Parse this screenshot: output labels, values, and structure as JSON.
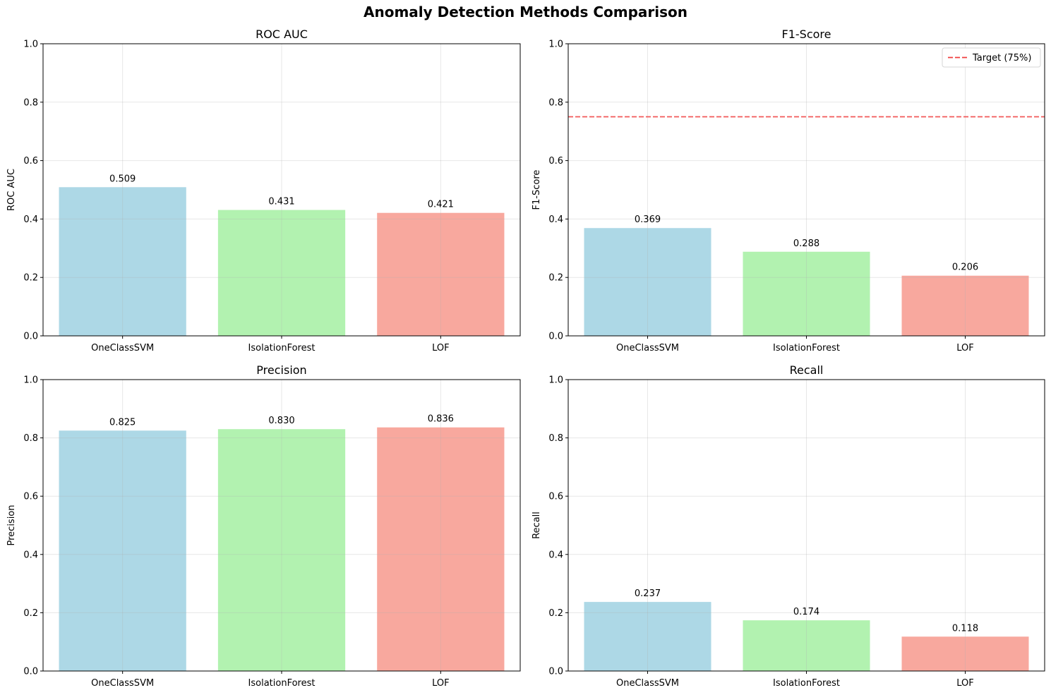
{
  "suptitle": "Anomaly Detection Methods Comparison",
  "chart_data": [
    {
      "type": "bar",
      "title": "ROC AUC",
      "ylabel": "ROC AUC",
      "xlabel": "",
      "categories": [
        "OneClassSVM",
        "IsolationForest",
        "LOF"
      ],
      "values": [
        0.509,
        0.431,
        0.421
      ],
      "value_labels": [
        "0.509",
        "0.431",
        "0.421"
      ],
      "colors": [
        "#add8e6",
        "#b2f2b0",
        "#f8a89e"
      ],
      "ylim": [
        0,
        1.0
      ],
      "yticks": [
        "0.0",
        "0.2",
        "0.4",
        "0.6",
        "0.8",
        "1.0"
      ],
      "grid": true
    },
    {
      "type": "bar",
      "title": "F1-Score",
      "ylabel": "F1-Score",
      "xlabel": "",
      "categories": [
        "OneClassSVM",
        "IsolationForest",
        "LOF"
      ],
      "values": [
        0.369,
        0.288,
        0.206
      ],
      "value_labels": [
        "0.369",
        "0.288",
        "0.206"
      ],
      "colors": [
        "#add8e6",
        "#b2f2b0",
        "#f8a89e"
      ],
      "ylim": [
        0,
        1.0
      ],
      "yticks": [
        "0.0",
        "0.2",
        "0.4",
        "0.6",
        "0.8",
        "1.0"
      ],
      "grid": true,
      "reference_line": {
        "value": 0.75,
        "label": "Target (75%)",
        "color": "#f03c3c",
        "style": "dashed"
      },
      "legend": "top-right"
    },
    {
      "type": "bar",
      "title": "Precision",
      "ylabel": "Precision",
      "xlabel": "",
      "categories": [
        "OneClassSVM",
        "IsolationForest",
        "LOF"
      ],
      "values": [
        0.825,
        0.83,
        0.836
      ],
      "value_labels": [
        "0.825",
        "0.830",
        "0.836"
      ],
      "colors": [
        "#add8e6",
        "#b2f2b0",
        "#f8a89e"
      ],
      "ylim": [
        0,
        1.0
      ],
      "yticks": [
        "0.0",
        "0.2",
        "0.4",
        "0.6",
        "0.8",
        "1.0"
      ],
      "grid": true
    },
    {
      "type": "bar",
      "title": "Recall",
      "ylabel": "Recall",
      "xlabel": "",
      "categories": [
        "OneClassSVM",
        "IsolationForest",
        "LOF"
      ],
      "values": [
        0.237,
        0.174,
        0.118
      ],
      "value_labels": [
        "0.237",
        "0.174",
        "0.118"
      ],
      "colors": [
        "#add8e6",
        "#b2f2b0",
        "#f8a89e"
      ],
      "ylim": [
        0,
        1.0
      ],
      "yticks": [
        "0.0",
        "0.2",
        "0.4",
        "0.6",
        "0.8",
        "1.0"
      ],
      "grid": true
    }
  ]
}
